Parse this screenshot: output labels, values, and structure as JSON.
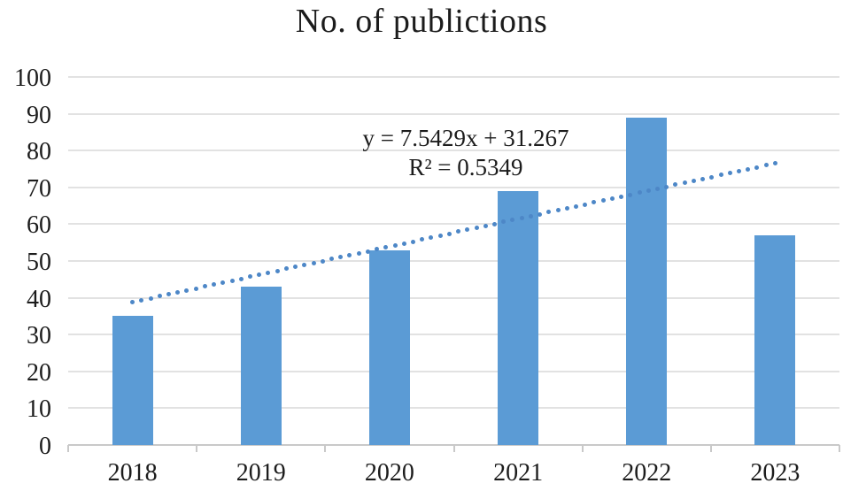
{
  "title": "No. of publictions",
  "annotation": {
    "equation": "y = 7.5429x + 31.267",
    "r_squared": "R² = 0.5349"
  },
  "chart_data": {
    "type": "bar",
    "title": "No. of publictions",
    "categories": [
      "2018",
      "2019",
      "2020",
      "2021",
      "2022",
      "2023"
    ],
    "values": [
      35,
      43,
      53,
      69,
      89,
      57
    ],
    "xlabel": "",
    "ylabel": "",
    "ylim": [
      0,
      100
    ],
    "yticks": [
      0,
      10,
      20,
      30,
      40,
      50,
      60,
      70,
      80,
      90,
      100
    ],
    "grid": true,
    "legend": false,
    "trendline": {
      "type": "linear",
      "slope": 7.5429,
      "intercept": 31.267,
      "equation": "y = 7.5429x + 31.267",
      "r_squared": 0.5349,
      "style": "dotted",
      "x_start": 1,
      "x_end": 6
    },
    "colors": {
      "bar": "#5b9bd5",
      "trendline": "#4d87c7",
      "gridline": "#e2e2e2",
      "axis": "#c9c9c9",
      "text": "#1c1c1c"
    }
  }
}
